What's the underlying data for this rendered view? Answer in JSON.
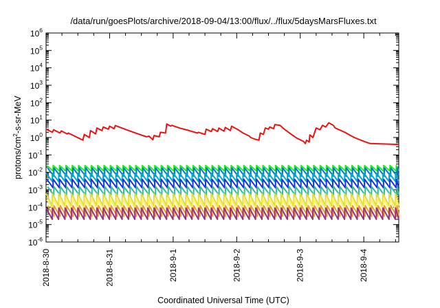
{
  "chart_data": {
    "type": "line",
    "title": "/data/run/goesPlots/archive/2018-09-04/13:00/flux/../flux/5daysMarsFluxes.txt",
    "xlabel": "Coordinated Universal Time (UTC)",
    "ylabel": {
      "pre": "protons/cm",
      "sup": "2",
      "post": "-s-sr-MeV"
    },
    "y_scale": "log",
    "ylim": [
      1e-06,
      1000000.0
    ],
    "xlim_days_from_2018-08-30": [
      0,
      5.55
    ],
    "x_ticks": [
      "2018-8-30",
      "2018-8-31",
      "2018-9-1",
      "2018-9-2",
      "2018-9-3",
      "2018-9-4"
    ],
    "y_ticks": [
      {
        "base": "10",
        "exp": "-6"
      },
      {
        "base": "10",
        "exp": "-5"
      },
      {
        "base": "10",
        "exp": "-4"
      },
      {
        "base": "10",
        "exp": "-3"
      },
      {
        "base": "10",
        "exp": "-2"
      },
      {
        "base": "10",
        "exp": "-1"
      },
      {
        "base": "10",
        "exp": "0"
      },
      {
        "base": "10",
        "exp": "1"
      },
      {
        "base": "10",
        "exp": "2"
      },
      {
        "base": "10",
        "exp": "3"
      },
      {
        "base": "10",
        "exp": "4"
      },
      {
        "base": "10",
        "exp": "5"
      },
      {
        "base": "10",
        "exp": "6"
      }
    ],
    "grid": false,
    "legend": "none",
    "sawtooth_period_days": 0.1,
    "series": [
      {
        "color": "#ee1111",
        "points": [
          [
            0.0,
            3.0
          ],
          [
            0.1,
            2.0
          ],
          [
            0.12,
            2.8
          ],
          [
            0.22,
            1.8
          ],
          [
            0.24,
            2.4
          ],
          [
            0.33,
            1.6
          ],
          [
            0.35,
            1.8
          ],
          [
            0.45,
            1.2
          ],
          [
            0.52,
            0.9
          ],
          [
            0.58,
            0.7
          ],
          [
            0.6,
            1.5
          ],
          [
            0.68,
            1.0
          ],
          [
            0.7,
            2.5
          ],
          [
            0.78,
            1.6
          ],
          [
            0.8,
            3.5
          ],
          [
            0.88,
            2.5
          ],
          [
            0.9,
            4.0
          ],
          [
            0.98,
            3.0
          ],
          [
            1.0,
            4.5
          ],
          [
            1.07,
            3.2
          ],
          [
            1.09,
            4.8
          ],
          [
            1.15,
            4.0
          ],
          [
            1.3,
            2.5
          ],
          [
            1.45,
            1.6
          ],
          [
            1.58,
            1.1
          ],
          [
            1.62,
            1.2
          ],
          [
            1.68,
            0.75
          ],
          [
            1.7,
            1.3
          ],
          [
            1.78,
            1.1
          ],
          [
            1.8,
            2.0
          ],
          [
            1.88,
            1.8
          ],
          [
            1.9,
            6.0
          ],
          [
            1.96,
            4.5
          ],
          [
            1.98,
            5.0
          ],
          [
            2.1,
            3.5
          ],
          [
            2.25,
            2.5
          ],
          [
            2.38,
            1.8
          ],
          [
            2.4,
            2.0
          ],
          [
            2.5,
            1.5
          ],
          [
            2.52,
            3.0
          ],
          [
            2.6,
            2.2
          ],
          [
            2.62,
            3.2
          ],
          [
            2.7,
            2.2
          ],
          [
            2.72,
            3.5
          ],
          [
            2.8,
            2.3
          ],
          [
            2.82,
            3.8
          ],
          [
            2.9,
            2.5
          ],
          [
            2.92,
            4.5
          ],
          [
            2.99,
            3.2
          ],
          [
            3.01,
            3.0
          ],
          [
            3.1,
            1.8
          ],
          [
            3.2,
            1.2
          ],
          [
            3.22,
            1.0
          ],
          [
            3.29,
            0.8
          ],
          [
            3.35,
            0.7
          ],
          [
            3.37,
            1.8
          ],
          [
            3.42,
            1.5
          ],
          [
            3.45,
            3.5
          ],
          [
            3.5,
            3.0
          ],
          [
            3.52,
            4.0
          ],
          [
            3.58,
            3.2
          ],
          [
            3.6,
            5.5
          ],
          [
            3.68,
            5.0
          ],
          [
            3.75,
            3.0
          ],
          [
            3.85,
            1.6
          ],
          [
            3.95,
            0.9
          ],
          [
            4.05,
            0.6
          ],
          [
            4.08,
            0.45
          ],
          [
            4.1,
            0.7
          ],
          [
            4.14,
            0.55
          ],
          [
            4.15,
            1.4
          ],
          [
            4.2,
            1.0
          ],
          [
            4.25,
            3.5
          ],
          [
            4.31,
            2.8
          ],
          [
            4.35,
            5.0
          ],
          [
            4.4,
            4.0
          ],
          [
            4.45,
            7.0
          ],
          [
            4.52,
            5.0
          ],
          [
            4.55,
            3.5
          ],
          [
            4.7,
            2.0
          ],
          [
            4.85,
            1.0
          ],
          [
            5.0,
            0.6
          ],
          [
            5.1,
            0.45
          ],
          [
            5.55,
            0.4
          ]
        ]
      },
      {
        "color": "#22ee22",
        "peak": 0.025,
        "trough": 0.012
      },
      {
        "color": "#0077cc",
        "peak": 0.018,
        "trough": 0.006
      },
      {
        "color": "#00aacc",
        "peak": 0.009,
        "trough": 0.003
      },
      {
        "color": "#1133dd",
        "peak": 0.004,
        "trough": 0.0013
      },
      {
        "color": "#33bb99",
        "peak": 0.0015,
        "trough": 0.0005
      },
      {
        "color": "#dddd33",
        "peak": 0.0006,
        "trough": 0.00012
      },
      {
        "color": "#ffee66",
        "peak": 0.0003,
        "trough": 7e-05
      },
      {
        "color": "#ee9933",
        "peak": 0.00012,
        "trough": 3e-05
      },
      {
        "color": "#993377",
        "peak": 9e-05,
        "trough": 2e-05
      }
    ]
  }
}
